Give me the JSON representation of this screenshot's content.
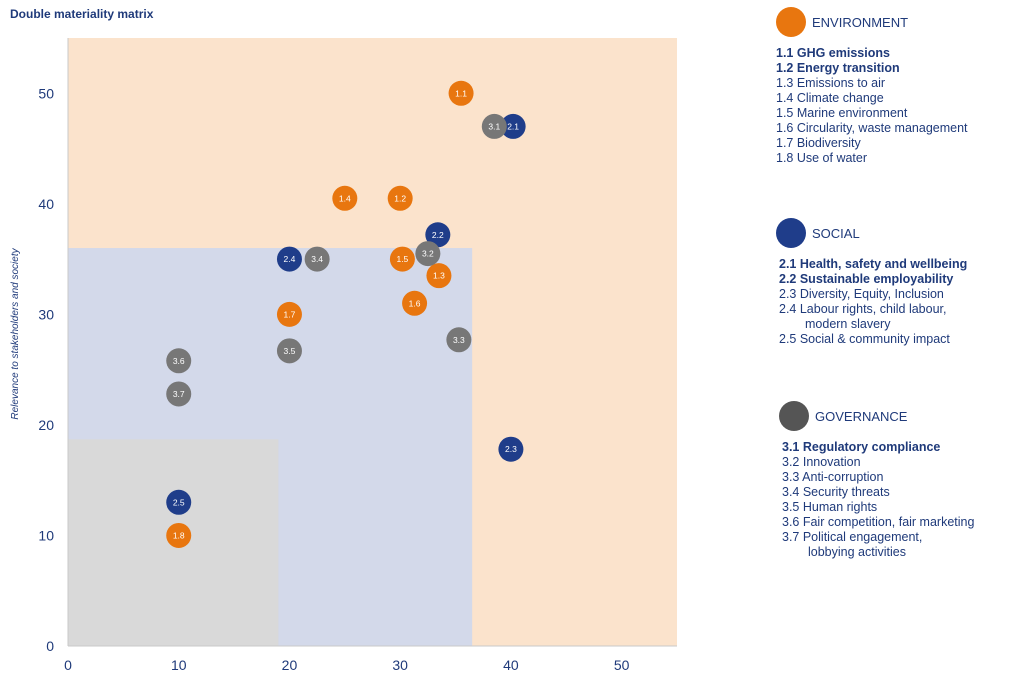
{
  "title": "Double materiality matrix",
  "chart_data": {
    "type": "scatter",
    "title": "Double materiality matrix",
    "xlabel": "",
    "ylabel": "Relevance to stakeholders and society",
    "xlim": [
      0,
      55
    ],
    "ylim": [
      0,
      55
    ],
    "x_ticks": [
      0,
      10,
      20,
      30,
      40,
      50
    ],
    "y_ticks": [
      0,
      10,
      20,
      30,
      40,
      50
    ],
    "grid": false,
    "legend_position": "right",
    "zones": [
      {
        "name": "high",
        "x_max": 55,
        "y_max": 55,
        "color": "#fbe3cc"
      },
      {
        "name": "medium",
        "x_max": 36.5,
        "y_max": 36,
        "color": "#d3d9ea"
      },
      {
        "name": "low",
        "x_max": 19,
        "y_max": 18.7,
        "color": "#d9d9d9"
      }
    ],
    "series": [
      {
        "name": "ENVIRONMENT",
        "color": "#e8760f",
        "points": [
          {
            "label": "1.1",
            "x": 35.5,
            "y": 50
          },
          {
            "label": "1.2",
            "x": 30,
            "y": 40.5
          },
          {
            "label": "1.3",
            "x": 33.5,
            "y": 33.5
          },
          {
            "label": "1.4",
            "x": 25,
            "y": 40.5
          },
          {
            "label": "1.5",
            "x": 30.2,
            "y": 35
          },
          {
            "label": "1.6",
            "x": 31.3,
            "y": 31
          },
          {
            "label": "1.7",
            "x": 20,
            "y": 30
          },
          {
            "label": "1.8",
            "x": 10,
            "y": 10
          }
        ]
      },
      {
        "name": "SOCIAL",
        "color": "#1f3d8a",
        "points": [
          {
            "label": "2.1",
            "x": 40.2,
            "y": 47
          },
          {
            "label": "2.2",
            "x": 33.4,
            "y": 37.2
          },
          {
            "label": "2.3",
            "x": 40,
            "y": 17.8
          },
          {
            "label": "2.4",
            "x": 20,
            "y": 35
          },
          {
            "label": "2.5",
            "x": 10,
            "y": 13
          }
        ]
      },
      {
        "name": "GOVERNANCE",
        "color": "#777777",
        "points": [
          {
            "label": "3.1",
            "x": 38.5,
            "y": 47
          },
          {
            "label": "3.2",
            "x": 32.5,
            "y": 35.5
          },
          {
            "label": "3.3",
            "x": 35.3,
            "y": 27.7
          },
          {
            "label": "3.4",
            "x": 22.5,
            "y": 35
          },
          {
            "label": "3.5",
            "x": 20,
            "y": 26.7
          },
          {
            "label": "3.6",
            "x": 10,
            "y": 25.8
          },
          {
            "label": "3.7",
            "x": 10,
            "y": 22.8
          }
        ]
      }
    ]
  },
  "legend": [
    {
      "name": "ENVIRONMENT",
      "color": "#e8760f",
      "items": [
        {
          "text": "1.1 GHG emissions",
          "bold": true
        },
        {
          "text": "1.2 Energy transition",
          "bold": true
        },
        {
          "text": "1.3 Emissions to air",
          "bold": false
        },
        {
          "text": "1.4 Climate change",
          "bold": false
        },
        {
          "text": "1.5 Marine environment",
          "bold": false
        },
        {
          "text": "1.6 Circularity, waste management",
          "bold": false
        },
        {
          "text": "1.7 Biodiversity",
          "bold": false
        },
        {
          "text": "1.8 Use of water",
          "bold": false
        }
      ]
    },
    {
      "name": "SOCIAL",
      "color": "#1f3d8a",
      "items": [
        {
          "text": "2.1 Health, safety and wellbeing",
          "bold": true
        },
        {
          "text": "2.2 Sustainable employability",
          "bold": true
        },
        {
          "text": "2.3 Diversity, Equity, Inclusion",
          "bold": false
        },
        {
          "text": "2.4 Labour rights, child labour,",
          "cont": "modern slavery",
          "bold": false
        },
        {
          "text": "2.5 Social & community impact",
          "bold": false
        }
      ]
    },
    {
      "name": "GOVERNANCE",
      "color": "#555555",
      "items": [
        {
          "text": "3.1 Regulatory compliance",
          "bold": true
        },
        {
          "text": "3.2 Innovation",
          "bold": false
        },
        {
          "text": "3.3 Anti-corruption",
          "bold": false
        },
        {
          "text": "3.4 Security threats",
          "bold": false
        },
        {
          "text": "3.5 Human rights",
          "bold": false
        },
        {
          "text": "3.6 Fair competition, fair marketing",
          "bold": false
        },
        {
          "text": "3.7 Political engagement,",
          "cont": "lobbying activities",
          "bold": false
        }
      ]
    }
  ]
}
